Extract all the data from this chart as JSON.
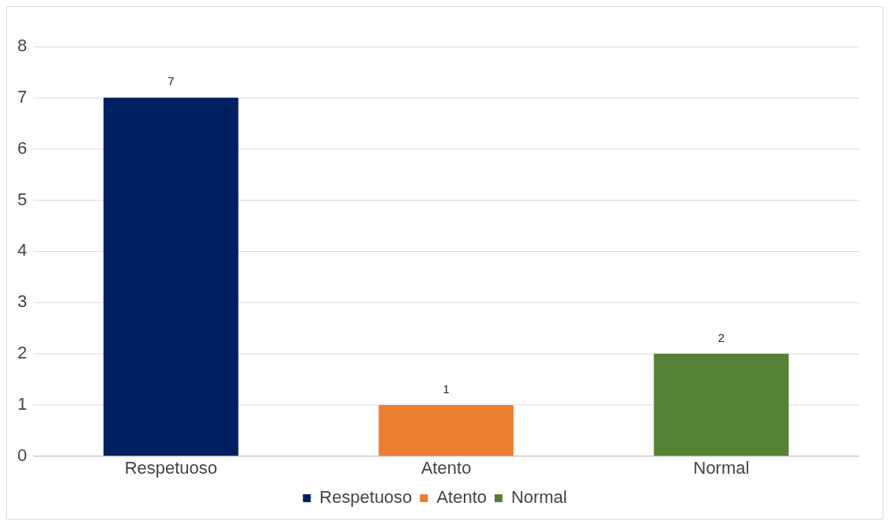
{
  "chart_data": {
    "type": "bar",
    "categories": [
      "Respetuoso",
      "Atento",
      "Normal"
    ],
    "series": [
      {
        "name": "Respetuoso",
        "color": "#002060",
        "values": [
          7,
          null,
          null
        ]
      },
      {
        "name": "Atento",
        "color": "#ed7d31",
        "values": [
          null,
          1,
          null
        ]
      },
      {
        "name": "Normal",
        "color": "#548235",
        "values": [
          null,
          null,
          2
        ]
      }
    ],
    "ylim": [
      0,
      8
    ],
    "yticks": [
      0,
      1,
      2,
      3,
      4,
      5,
      6,
      7,
      8
    ],
    "grid": "y",
    "legend": "bottom",
    "data_labels": true
  }
}
